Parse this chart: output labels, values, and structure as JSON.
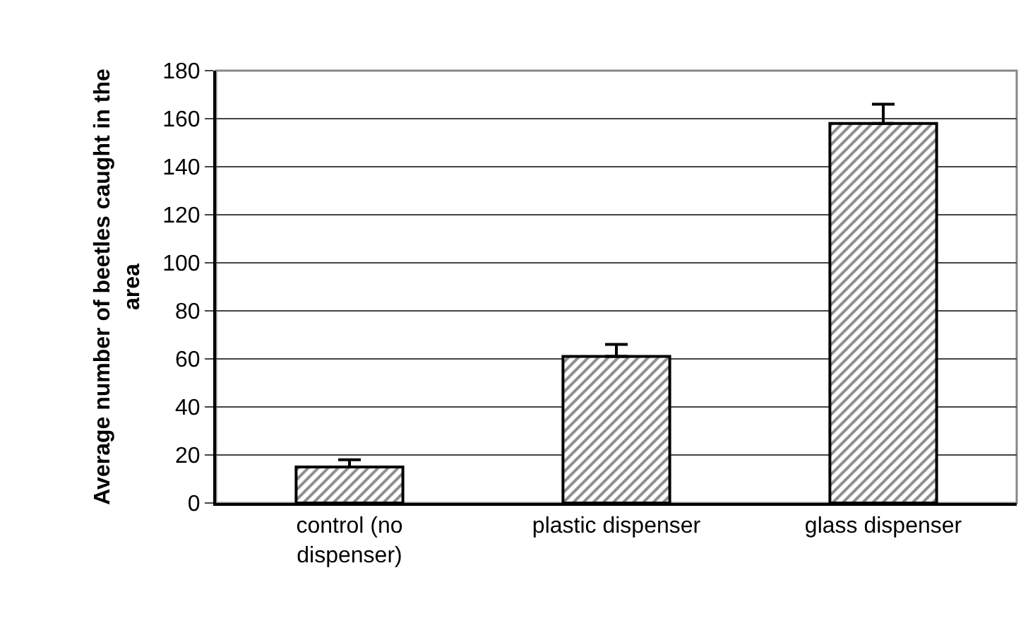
{
  "chart_data": {
    "type": "bar",
    "ylabel": "Average number of beetles caught in the area",
    "categories": [
      "control (no dispenser)",
      "plastic dispenser",
      "glass dispenser"
    ],
    "values": [
      15,
      61,
      158
    ],
    "errors": [
      [
        15,
        18
      ],
      [
        61,
        66
      ],
      [
        158,
        166
      ]
    ],
    "ylim": [
      0,
      180
    ],
    "yticks": [
      0,
      20,
      40,
      60,
      80,
      100,
      120,
      140,
      160,
      180
    ],
    "grid": "y"
  }
}
